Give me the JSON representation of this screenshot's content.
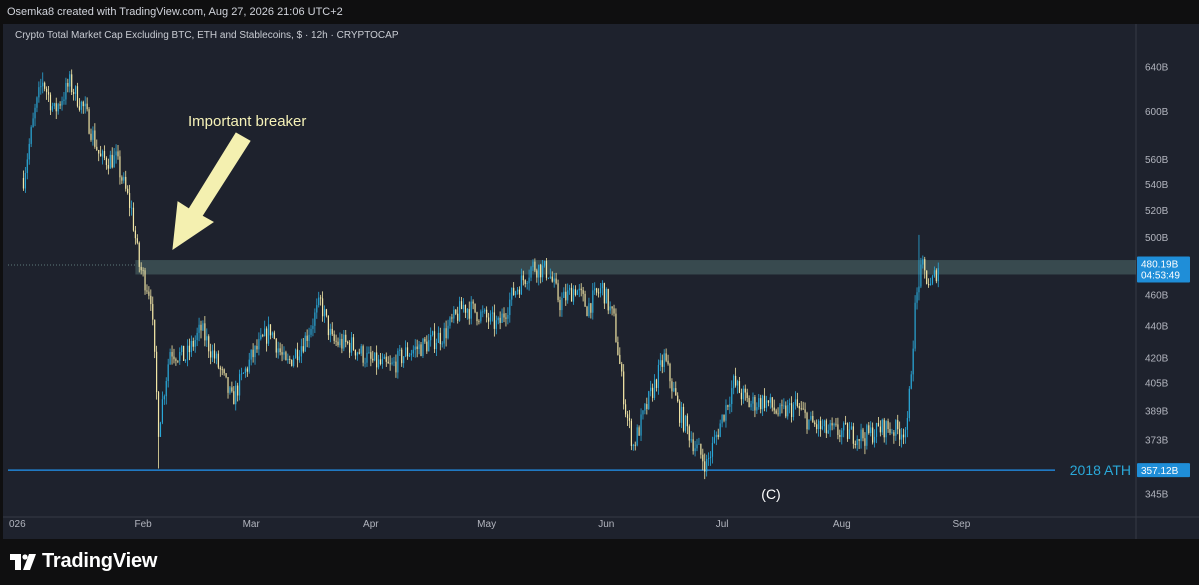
{
  "header": {
    "credit": "Osemka8 created with TradingView.com, Aug 27, 2026 21:06 UTC+2"
  },
  "chart_title": "Crypto Total Market Cap Excluding BTC, ETH and Stablecoins, $ · 12h · CRYPTOCAP",
  "footer": {
    "brand": "TradingView",
    "logo_icon": "tradingview-logo-icon"
  },
  "colors": {
    "up": "#2aa8d8",
    "down": "#f2e6a6",
    "accent": "#2196f3",
    "zone": "#4f6b6b",
    "annotation": "#f6f2b8"
  },
  "chart_data": {
    "type": "candlestick",
    "title": "Crypto Total Market Cap Excluding BTC, ETH and Stablecoins, $ · 12h · CRYPTOCAP",
    "x_ticks": [
      "026",
      "Feb",
      "Mar",
      "Apr",
      "May",
      "Jun",
      "Jul",
      "Aug",
      "Sep"
    ],
    "y_ticks": [
      "640B",
      "600B",
      "560B",
      "540B",
      "520B",
      "500B",
      "480B",
      "460B",
      "440B",
      "420B",
      "405B",
      "389B",
      "373B",
      "357B",
      "345B"
    ],
    "y_scale": "log",
    "price_label": "480.19B",
    "countdown_label": "04:53:49",
    "support_label": "357.12B",
    "support_line_value": 357.12,
    "support_text": "2018 ATH",
    "zone": {
      "low": 474,
      "high": 484
    },
    "annotations": [
      {
        "text": "Important breaker",
        "type": "arrow"
      },
      {
        "text": "(C)",
        "type": "label"
      }
    ],
    "ohlc_keypoints_date_close": [
      [
        "Jan 01",
        545
      ],
      [
        "Jan 04",
        600
      ],
      [
        "Jan 06",
        628
      ],
      [
        "Jan 09",
        600
      ],
      [
        "Jan 13",
        625
      ],
      [
        "Jan 17",
        600
      ],
      [
        "Jan 21",
        560
      ],
      [
        "Jan 25",
        560
      ],
      [
        "Jan 29",
        520
      ],
      [
        "Jan 31",
        480
      ],
      [
        "Feb 03",
        460
      ],
      [
        "Feb 05",
        380
      ],
      [
        "Feb 08",
        425
      ],
      [
        "Feb 12",
        420
      ],
      [
        "Feb 16",
        438
      ],
      [
        "Feb 20",
        418
      ],
      [
        "Feb 24",
        395
      ],
      [
        "Mar 01",
        420
      ],
      [
        "Mar 06",
        438
      ],
      [
        "Mar 10",
        415
      ],
      [
        "Mar 15",
        432
      ],
      [
        "Mar 19",
        455
      ],
      [
        "Mar 22",
        430
      ],
      [
        "Mar 27",
        428
      ],
      [
        "Apr 01",
        418
      ],
      [
        "Apr 06",
        414
      ],
      [
        "Apr 10",
        423
      ],
      [
        "Apr 15",
        428
      ],
      [
        "Apr 20",
        435
      ],
      [
        "Apr 25",
        453
      ],
      [
        "Apr 29",
        448
      ],
      [
        "May 04",
        440
      ],
      [
        "May 08",
        462
      ],
      [
        "May 13",
        480
      ],
      [
        "May 17",
        476
      ],
      [
        "May 20",
        455
      ],
      [
        "May 24",
        465
      ],
      [
        "May 27",
        452
      ],
      [
        "May 31",
        465
      ],
      [
        "Jun 03",
        443
      ],
      [
        "Jun 06",
        390
      ],
      [
        "Jun 08",
        370
      ],
      [
        "Jun 12",
        395
      ],
      [
        "Jun 16",
        420
      ],
      [
        "Jun 20",
        388
      ],
      [
        "Jun 24",
        370
      ],
      [
        "Jun 27",
        360
      ],
      [
        "Jul 01",
        385
      ],
      [
        "Jul 04",
        405
      ],
      [
        "Jul 08",
        393
      ],
      [
        "Jul 12",
        395
      ],
      [
        "Jul 16",
        387
      ],
      [
        "Jul 20",
        392
      ],
      [
        "Jul 24",
        382
      ],
      [
        "Jul 28",
        378
      ],
      [
        "Aug 02",
        377
      ],
      [
        "Aug 07",
        375
      ],
      [
        "Aug 12",
        380
      ],
      [
        "Aug 16",
        378
      ],
      [
        "Aug 18",
        380
      ],
      [
        "Aug 19",
        415
      ],
      [
        "Aug 20",
        450
      ],
      [
        "Aug 21",
        470
      ],
      [
        "Aug 22",
        478
      ],
      [
        "Aug 24",
        465
      ],
      [
        "Aug 26",
        480
      ]
    ]
  }
}
